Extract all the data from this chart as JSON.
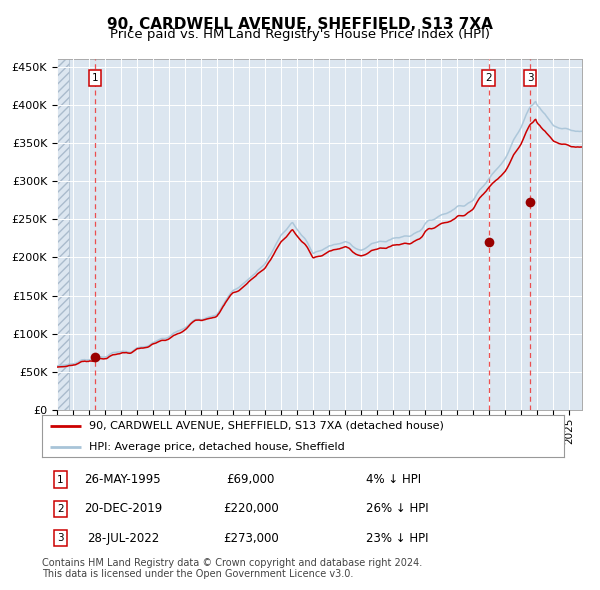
{
  "title": "90, CARDWELL AVENUE, SHEFFIELD, S13 7XA",
  "subtitle": "Price paid vs. HM Land Registry's House Price Index (HPI)",
  "ylim": [
    0,
    460000
  ],
  "yticks": [
    0,
    50000,
    100000,
    150000,
    200000,
    250000,
    300000,
    350000,
    400000,
    450000
  ],
  "ytick_labels": [
    "£0",
    "£50K",
    "£100K",
    "£150K",
    "£200K",
    "£250K",
    "£300K",
    "£350K",
    "£400K",
    "£450K"
  ],
  "xlim_start": 1993.0,
  "xlim_end": 2025.8,
  "hpi_color": "#a8c4d8",
  "price_color": "#cc0000",
  "marker_color": "#990000",
  "dashed_line_color": "#ee3333",
  "background_color": "#dce6f0",
  "sale_points": [
    {
      "date_num": 1995.39,
      "price": 69000,
      "label": "1",
      "date_str": "26-MAY-1995",
      "price_str": "£69,000",
      "pct": "4%"
    },
    {
      "date_num": 2019.97,
      "price": 220000,
      "label": "2",
      "date_str": "20-DEC-2019",
      "price_str": "£220,000",
      "pct": "26%"
    },
    {
      "date_num": 2022.56,
      "price": 273000,
      "label": "3",
      "date_str": "28-JUL-2022",
      "price_str": "£273,000",
      "pct": "23%"
    }
  ],
  "legend_line1": "90, CARDWELL AVENUE, SHEFFIELD, S13 7XA (detached house)",
  "legend_line2": "HPI: Average price, detached house, Sheffield",
  "footer": "Contains HM Land Registry data © Crown copyright and database right 2024.\nThis data is licensed under the Open Government Licence v3.0.",
  "title_fontsize": 11,
  "subtitle_fontsize": 9.5,
  "tick_fontsize": 8,
  "legend_fontsize": 8,
  "footer_fontsize": 7,
  "table_fontsize": 8.5
}
